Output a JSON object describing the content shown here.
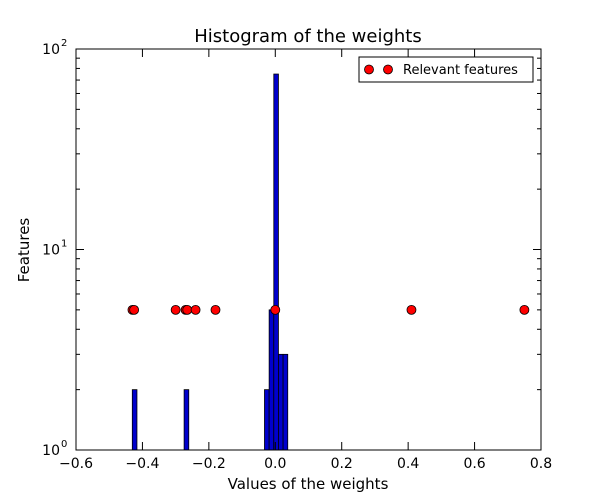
{
  "chart_data": {
    "type": "histogram",
    "title": "Histogram of the weights",
    "xlabel": "Values of the weights",
    "ylabel": "Features",
    "xlim": [
      -0.6,
      0.8
    ],
    "ylim": [
      1,
      100
    ],
    "yscale": "log",
    "x_ticks": [
      -0.6,
      -0.4,
      -0.2,
      0.0,
      0.2,
      0.4,
      0.6,
      0.8
    ],
    "x_tick_labels": [
      "−0.6",
      "−0.4",
      "−0.2",
      "0.0",
      "0.2",
      "0.4",
      "0.6",
      "0.8"
    ],
    "y_ticks": [
      {
        "value": 1,
        "base": "10",
        "exp": "0"
      },
      {
        "value": 10,
        "base": "10",
        "exp": "1"
      },
      {
        "value": 100,
        "base": "10",
        "exp": "2"
      }
    ],
    "bar_color": "#0000cc",
    "bars": [
      {
        "x0": -0.4305,
        "x1": -0.4165,
        "count": 2
      },
      {
        "x0": -0.2745,
        "x1": -0.2605,
        "count": 2
      },
      {
        "x0": -0.0325,
        "x1": -0.0185,
        "count": 2
      },
      {
        "x0": -0.0185,
        "x1": -0.0045,
        "count": 5
      },
      {
        "x0": -0.0045,
        "x1": 0.0095,
        "count": 75
      },
      {
        "x0": 0.0095,
        "x1": 0.0235,
        "count": 3
      },
      {
        "x0": 0.0235,
        "x1": 0.0375,
        "count": 3
      }
    ],
    "scatter": {
      "name": "Relevant features",
      "color": "#ff0000",
      "y": 5,
      "x": [
        -0.43,
        -0.425,
        -0.3,
        -0.27,
        -0.265,
        -0.24,
        -0.18,
        0.0,
        0.41,
        0.75
      ]
    },
    "legend": {
      "position": "top-right",
      "label": "Relevant features"
    }
  }
}
